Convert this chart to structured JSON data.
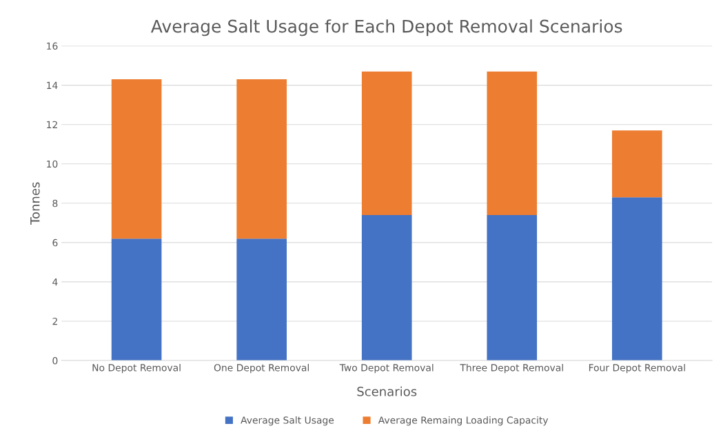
{
  "chart_data": {
    "type": "bar",
    "stacked": true,
    "title": "Average Salt Usage for Each Depot Removal Scenarios",
    "xlabel": "Scenarios",
    "ylabel": "Tonnes",
    "categories": [
      "No Depot Removal",
      "One Depot Removal",
      "Two Depot Removal",
      "Three Depot Removal",
      "Four Depot Removal"
    ],
    "series": [
      {
        "name": "Average Salt Usage",
        "color": "#4472c4",
        "values": [
          6.2,
          6.2,
          7.4,
          7.4,
          8.3
        ]
      },
      {
        "name": "Average Remaing Loading Capacity",
        "color": "#ed7d31",
        "values": [
          8.1,
          8.1,
          7.3,
          7.3,
          3.4
        ]
      }
    ],
    "ylim": [
      0,
      16
    ],
    "yticks": [
      0,
      2,
      4,
      6,
      8,
      10,
      12,
      14,
      16
    ],
    "grid": "y",
    "legend": "bottom"
  }
}
